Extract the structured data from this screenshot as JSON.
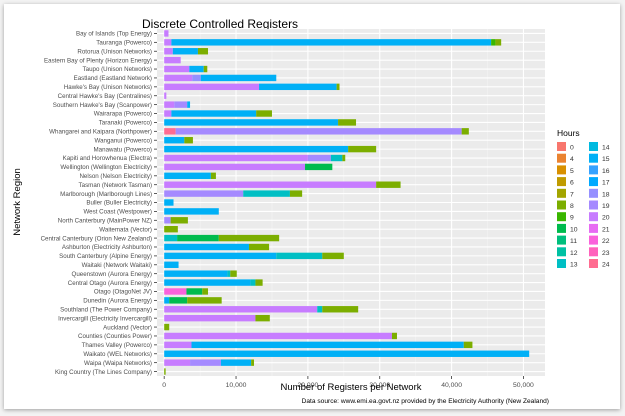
{
  "chart_data": {
    "type": "bar",
    "orientation": "horizontal",
    "stacked": true,
    "title": "Discrete Controlled Registers",
    "xlabel": "Number of Registers per Network",
    "ylabel": "Network Region",
    "xlim": [
      -1000,
      53000
    ],
    "xticks": [
      0,
      10000,
      20000,
      30000,
      40000,
      50000
    ],
    "xtick_labels": [
      "0",
      "10,000",
      "20,000",
      "30,000",
      "40,000",
      "50,000"
    ],
    "caption": "Data source: www.emi.ea.govt.nz provided by the Electricity Authority (New Zealand)",
    "legend": {
      "title": "Hours",
      "placement": "right",
      "items": [
        {
          "label": "0",
          "color": "#F8766D"
        },
        {
          "label": "4",
          "color": "#EA8331"
        },
        {
          "label": "5",
          "color": "#D89000"
        },
        {
          "label": "6",
          "color": "#C09B00"
        },
        {
          "label": "7",
          "color": "#A3A500"
        },
        {
          "label": "8",
          "color": "#7CAE00"
        },
        {
          "label": "9",
          "color": "#39B600"
        },
        {
          "label": "10",
          "color": "#00BB4E"
        },
        {
          "label": "11",
          "color": "#00BF7D"
        },
        {
          "label": "12",
          "color": "#00C1A3"
        },
        {
          "label": "13",
          "color": "#00BFC4"
        },
        {
          "label": "14",
          "color": "#00BAE0"
        },
        {
          "label": "15",
          "color": "#00B0F6"
        },
        {
          "label": "16",
          "color": "#35A2FF"
        },
        {
          "label": "17",
          "color": "#00A9FF"
        },
        {
          "label": "18",
          "color": "#9590FF"
        },
        {
          "label": "19",
          "color": "#A58AFF"
        },
        {
          "label": "20",
          "color": "#C77CFF"
        },
        {
          "label": "21",
          "color": "#E76BF3"
        },
        {
          "label": "22",
          "color": "#FA62DB"
        },
        {
          "label": "23",
          "color": "#FF62BC"
        },
        {
          "label": "24",
          "color": "#FF6C91"
        }
      ]
    },
    "categories": [
      "Bay of Islands (Top Energy)",
      "Tauranga (Powerco)",
      "Rotorua (Unison Networks)",
      "Eastern Bay of Plenty (Horizon Energy)",
      "Taupo (Unison Networks)",
      "Eastland (Eastland Network)",
      "Hawke's Bay (Unison Networks)",
      "Central Hawke's Bay (Centralines)",
      "Southern Hawke's Bay (Scanpower)",
      "Wairarapa (Powerco)",
      "Taranaki (Powerco)",
      "Whangarei and Kaipara (Northpower)",
      "Wanganui (Powerco)",
      "Manawatu (Powerco)",
      "Kapiti and Horowhenua (Electra)",
      "Wellington (Wellington Electricity)",
      "Nelson (Nelson Electricity)",
      "Tasman (Network Tasman)",
      "Marlborough (Marlborough Lines)",
      "Buller (Buller Electricity)",
      "West Coast (Westpower)",
      "North Canterbury (MainPower NZ)",
      "Waitemata (Vector)",
      "Central Canterbury (Orion New Zealand)",
      "Ashburton (Electricity Ashburton)",
      "South Canterbury (Alpine Energy)",
      "Waitaki (Network Waitaki)",
      "Queenstown (Aurora Energy)",
      "Central Otago (Aurora Energy)",
      "Otago (OtagoNet JV)",
      "Dunedin (Aurora Energy)",
      "Southland (The Power Company)",
      "Invercargill (Electricity Invercargill)",
      "Auckland (Vector)",
      "Counties (Counties Power)",
      "Thames Valley (Powerco)",
      "Waikato (WEL Networks)",
      "Waipa (Waipa Networks)",
      "King Country (The Lines Company)"
    ],
    "bars": [
      [
        {
          "hours": "20",
          "value": 600
        }
      ],
      [
        {
          "hours": "20",
          "value": 1000
        },
        {
          "hours": "15",
          "value": 44500
        },
        {
          "hours": "9",
          "value": 600
        },
        {
          "hours": "8",
          "value": 800
        }
      ],
      [
        {
          "hours": "20",
          "value": 1200
        },
        {
          "hours": "15",
          "value": 3500
        },
        {
          "hours": "8",
          "value": 1400
        }
      ],
      [
        {
          "hours": "20",
          "value": 2300
        }
      ],
      [
        {
          "hours": "20",
          "value": 3500
        },
        {
          "hours": "15",
          "value": 2000
        },
        {
          "hours": "8",
          "value": 500
        }
      ],
      [
        {
          "hours": "20",
          "value": 3900
        },
        {
          "hours": "18",
          "value": 1200
        },
        {
          "hours": "15",
          "value": 10500
        }
      ],
      [
        {
          "hours": "20",
          "value": 13200
        },
        {
          "hours": "15",
          "value": 10800
        },
        {
          "hours": "8",
          "value": 400
        }
      ],
      [
        {
          "hours": "20",
          "value": 300
        }
      ],
      [
        {
          "hours": "20",
          "value": 1400
        },
        {
          "hours": "19",
          "value": 1800
        },
        {
          "hours": "15",
          "value": 400
        }
      ],
      [
        {
          "hours": "20",
          "value": 1000
        },
        {
          "hours": "15",
          "value": 11800
        },
        {
          "hours": "8",
          "value": 2200
        }
      ],
      [
        {
          "hours": "15",
          "value": 24200
        },
        {
          "hours": "8",
          "value": 2500
        }
      ],
      [
        {
          "hours": "24",
          "value": 1600
        },
        {
          "hours": "19",
          "value": 39800
        },
        {
          "hours": "8",
          "value": 1000
        }
      ],
      [
        {
          "hours": "15",
          "value": 2800
        },
        {
          "hours": "8",
          "value": 1200
        }
      ],
      [
        {
          "hours": "15",
          "value": 25600
        },
        {
          "hours": "8",
          "value": 3900
        }
      ],
      [
        {
          "hours": "20",
          "value": 20000
        },
        {
          "hours": "19",
          "value": 3200
        },
        {
          "hours": "13",
          "value": 1600
        },
        {
          "hours": "8",
          "value": 400
        }
      ],
      [
        {
          "hours": "20",
          "value": 19600
        },
        {
          "hours": "10",
          "value": 3800
        }
      ],
      [
        {
          "hours": "15",
          "value": 6500
        },
        {
          "hours": "8",
          "value": 700
        }
      ],
      [
        {
          "hours": "20",
          "value": 29500
        },
        {
          "hours": "8",
          "value": 3400
        }
      ],
      [
        {
          "hours": "19",
          "value": 11000
        },
        {
          "hours": "13",
          "value": 6500
        },
        {
          "hours": "8",
          "value": 1700
        }
      ],
      [
        {
          "hours": "15",
          "value": 1300
        }
      ],
      [
        {
          "hours": "15",
          "value": 7600
        }
      ],
      [
        {
          "hours": "19",
          "value": 900
        },
        {
          "hours": "8",
          "value": 2400
        }
      ],
      [
        {
          "hours": "8",
          "value": 1900
        }
      ],
      [
        {
          "hours": "13",
          "value": 1800
        },
        {
          "hours": "10",
          "value": 5800
        },
        {
          "hours": "8",
          "value": 8400
        }
      ],
      [
        {
          "hours": "15",
          "value": 11800
        },
        {
          "hours": "8",
          "value": 2800
        }
      ],
      [
        {
          "hours": "15",
          "value": 15600
        },
        {
          "hours": "13",
          "value": 6400
        },
        {
          "hours": "8",
          "value": 3000
        }
      ],
      [
        {
          "hours": "15",
          "value": 2000
        }
      ],
      [
        {
          "hours": "15",
          "value": 8800
        },
        {
          "hours": "13",
          "value": 400
        },
        {
          "hours": "8",
          "value": 900
        }
      ],
      [
        {
          "hours": "15",
          "value": 12000
        },
        {
          "hours": "13",
          "value": 700
        },
        {
          "hours": "8",
          "value": 1000
        }
      ],
      [
        {
          "hours": "22",
          "value": 3100
        },
        {
          "hours": "10",
          "value": 2200
        },
        {
          "hours": "8",
          "value": 800
        }
      ],
      [
        {
          "hours": "15",
          "value": 700
        },
        {
          "hours": "10",
          "value": 2500
        },
        {
          "hours": "8",
          "value": 4800
        }
      ],
      [
        {
          "hours": "20",
          "value": 21300
        },
        {
          "hours": "13",
          "value": 700
        },
        {
          "hours": "8",
          "value": 5000
        }
      ],
      [
        {
          "hours": "20",
          "value": 12700
        },
        {
          "hours": "8",
          "value": 2000
        }
      ],
      [
        {
          "hours": "8",
          "value": 700
        }
      ],
      [
        {
          "hours": "20",
          "value": 31700
        },
        {
          "hours": "8",
          "value": 700
        }
      ],
      [
        {
          "hours": "20",
          "value": 3800
        },
        {
          "hours": "15",
          "value": 37900
        },
        {
          "hours": "8",
          "value": 1200
        }
      ],
      [
        {
          "hours": "15",
          "value": 50800
        }
      ],
      [
        {
          "hours": "20",
          "value": 3600
        },
        {
          "hours": "19",
          "value": 4300
        },
        {
          "hours": "15",
          "value": 4200
        },
        {
          "hours": "8",
          "value": 400
        }
      ],
      [
        {
          "hours": "8",
          "value": 200
        }
      ]
    ]
  }
}
